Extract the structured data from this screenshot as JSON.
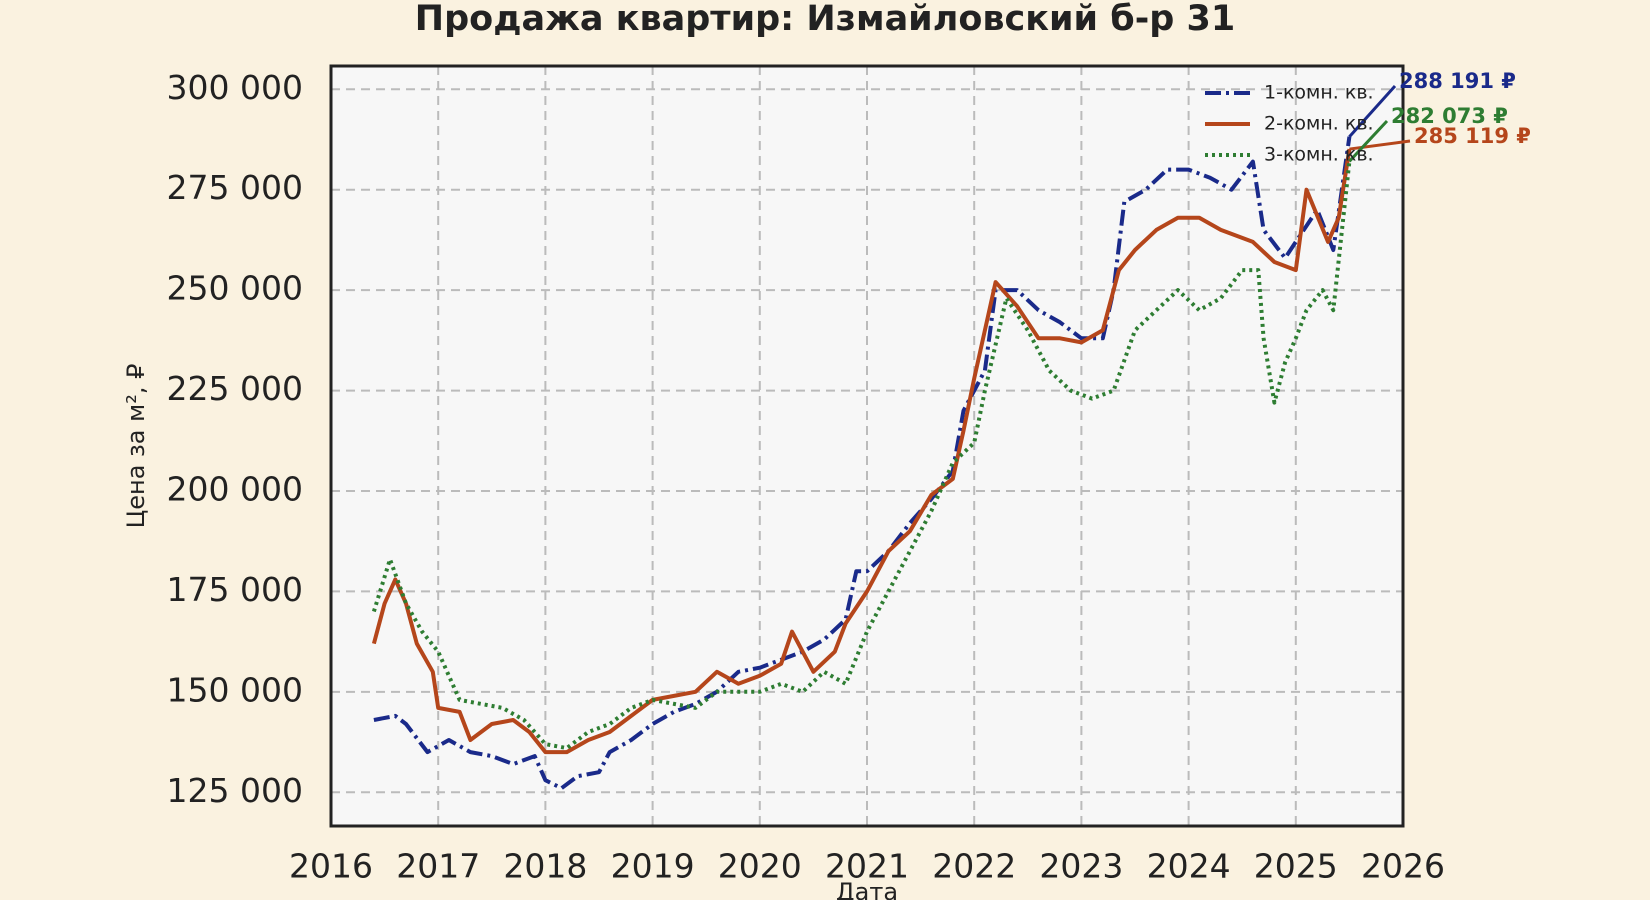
{
  "chart_data": {
    "type": "line",
    "title": "Продажа квартир: Измайловский б-р 31",
    "ylabel": "Цена за м², ₽",
    "xlabel": "Дата",
    "xlim": [
      2016,
      2026
    ],
    "xticks": [
      2016,
      2017,
      2018,
      2019,
      2020,
      2021,
      2022,
      2023,
      2024,
      2025,
      2026
    ],
    "ylim": [
      116600,
      305800
    ],
    "yticks": [
      {
        "value": 125000,
        "label": "125 000"
      },
      {
        "value": 150000,
        "label": "150 000"
      },
      {
        "value": 175000,
        "label": "175 000"
      },
      {
        "value": 200000,
        "label": "200 000"
      },
      {
        "value": 225000,
        "label": "225 000"
      },
      {
        "value": 250000,
        "label": "250 000"
      },
      {
        "value": 275000,
        "label": "275 000"
      },
      {
        "value": 300000,
        "label": "300 000"
      }
    ],
    "grid": true,
    "legend": "upper right",
    "series": [
      {
        "name": "1-комн. кв.",
        "color": "#1a2a8a",
        "dash": "dashdot",
        "x": [
          2016.4,
          2016.6,
          2016.7,
          2016.9,
          2017.1,
          2017.3,
          2017.5,
          2017.7,
          2017.9,
          2018.0,
          2018.15,
          2018.3,
          2018.5,
          2018.6,
          2018.8,
          2019.0,
          2019.2,
          2019.4,
          2019.6,
          2019.8,
          2020.0,
          2020.2,
          2020.4,
          2020.6,
          2020.8,
          2020.9,
          2021.0,
          2021.2,
          2021.4,
          2021.6,
          2021.8,
          2021.9,
          2022.1,
          2022.2,
          2022.4,
          2022.6,
          2022.8,
          2023.0,
          2023.2,
          2023.3,
          2023.4,
          2023.6,
          2023.8,
          2024.0,
          2024.2,
          2024.4,
          2024.6,
          2024.7,
          2024.9,
          2025.0,
          2025.2,
          2025.35,
          2025.5
        ],
        "values": [
          143000,
          144000,
          142000,
          135000,
          138000,
          135000,
          134000,
          132000,
          134000,
          128000,
          126000,
          129000,
          130000,
          135000,
          138000,
          142000,
          145000,
          147000,
          150000,
          155000,
          156000,
          158000,
          160000,
          163000,
          168000,
          180000,
          180000,
          185000,
          192000,
          198000,
          205000,
          220000,
          230000,
          250000,
          250000,
          245000,
          242000,
          238000,
          238000,
          250000,
          272000,
          275000,
          280000,
          280000,
          278000,
          275000,
          282000,
          265000,
          258000,
          262000,
          270000,
          260000,
          288191
        ],
        "value_labels": [
          null,
          null,
          null,
          null,
          null,
          null,
          null,
          null,
          null,
          null,
          null,
          null,
          null,
          null,
          null,
          null,
          null,
          null,
          null,
          null,
          null,
          null,
          null,
          null,
          null,
          null,
          null,
          null,
          null,
          null,
          null,
          null,
          null,
          null,
          null,
          null,
          null,
          null,
          null,
          null,
          null,
          null,
          null,
          null,
          null,
          null,
          null,
          null,
          null,
          null,
          null,
          null,
          "288 191 ₽"
        ]
      },
      {
        "name": "2-комн. кв.",
        "color": "#b5461b",
        "dash": "solid",
        "x": [
          2016.4,
          2016.5,
          2016.6,
          2016.7,
          2016.8,
          2016.95,
          2017.0,
          2017.2,
          2017.3,
          2017.5,
          2017.7,
          2017.85,
          2018.0,
          2018.2,
          2018.4,
          2018.6,
          2018.8,
          2019.0,
          2019.2,
          2019.4,
          2019.6,
          2019.8,
          2020.0,
          2020.2,
          2020.3,
          2020.5,
          2020.7,
          2020.8,
          2021.0,
          2021.2,
          2021.4,
          2021.6,
          2021.8,
          2021.9,
          2022.0,
          2022.2,
          2022.4,
          2022.6,
          2022.8,
          2023.0,
          2023.2,
          2023.35,
          2023.5,
          2023.7,
          2023.9,
          2024.1,
          2024.3,
          2024.5,
          2024.6,
          2024.8,
          2025.0,
          2025.1,
          2025.3,
          2025.4,
          2025.5
        ],
        "values": [
          162000,
          172000,
          178000,
          172000,
          162000,
          155000,
          146000,
          145000,
          138000,
          142000,
          143000,
          140000,
          135000,
          135000,
          138000,
          140000,
          144000,
          148000,
          149000,
          150000,
          155000,
          152000,
          154000,
          157000,
          165000,
          155000,
          160000,
          167000,
          175000,
          185000,
          190000,
          199000,
          203000,
          215000,
          228000,
          252000,
          246000,
          238000,
          238000,
          237000,
          240000,
          255000,
          260000,
          265000,
          268000,
          268000,
          265000,
          263000,
          262000,
          257000,
          255000,
          275000,
          262000,
          268000,
          285119
        ],
        "value_labels": [
          null,
          null,
          null,
          null,
          null,
          null,
          null,
          null,
          null,
          null,
          null,
          null,
          null,
          null,
          null,
          null,
          null,
          null,
          null,
          null,
          null,
          null,
          null,
          null,
          null,
          null,
          null,
          null,
          null,
          null,
          null,
          null,
          null,
          null,
          null,
          null,
          null,
          null,
          null,
          null,
          null,
          null,
          null,
          null,
          null,
          null,
          null,
          null,
          null,
          null,
          null,
          null,
          null,
          null,
          "285 119 ₽"
        ]
      },
      {
        "name": "3-комн. кв.",
        "color": "#2e7d32",
        "dash": "dotted",
        "x": [
          2016.4,
          2016.55,
          2016.7,
          2016.85,
          2017.0,
          2017.2,
          2017.4,
          2017.6,
          2017.8,
          2018.0,
          2018.2,
          2018.4,
          2018.6,
          2018.8,
          2019.0,
          2019.2,
          2019.4,
          2019.6,
          2019.8,
          2020.0,
          2020.2,
          2020.4,
          2020.6,
          2020.8,
          2021.0,
          2021.2,
          2021.4,
          2021.6,
          2021.8,
          2022.0,
          2022.1,
          2022.3,
          2022.5,
          2022.7,
          2022.9,
          2023.1,
          2023.3,
          2023.5,
          2023.7,
          2023.9,
          2024.1,
          2024.3,
          2024.5,
          2024.65,
          2024.7,
          2024.8,
          2024.9,
          2025.0,
          2025.1,
          2025.25,
          2025.35,
          2025.5
        ],
        "values": [
          170000,
          183000,
          172000,
          165000,
          160000,
          148000,
          147000,
          146000,
          143000,
          137000,
          136000,
          140000,
          142000,
          146000,
          148000,
          147000,
          146000,
          150000,
          150000,
          150000,
          152000,
          150000,
          155000,
          152000,
          165000,
          175000,
          185000,
          195000,
          207000,
          212000,
          225000,
          248000,
          240000,
          230000,
          225000,
          223000,
          225000,
          240000,
          245000,
          250000,
          245000,
          248000,
          255000,
          255000,
          238000,
          222000,
          232000,
          238000,
          245000,
          250000,
          245000,
          282073
        ],
        "value_labels": [
          null,
          null,
          null,
          null,
          null,
          null,
          null,
          null,
          null,
          null,
          null,
          null,
          null,
          null,
          null,
          null,
          null,
          null,
          null,
          null,
          null,
          null,
          null,
          null,
          null,
          null,
          null,
          null,
          null,
          null,
          null,
          null,
          null,
          null,
          null,
          null,
          null,
          null,
          null,
          null,
          null,
          null,
          null,
          null,
          null,
          null,
          null,
          null,
          null,
          null,
          null,
          "282 073 ₽"
        ]
      }
    ]
  }
}
